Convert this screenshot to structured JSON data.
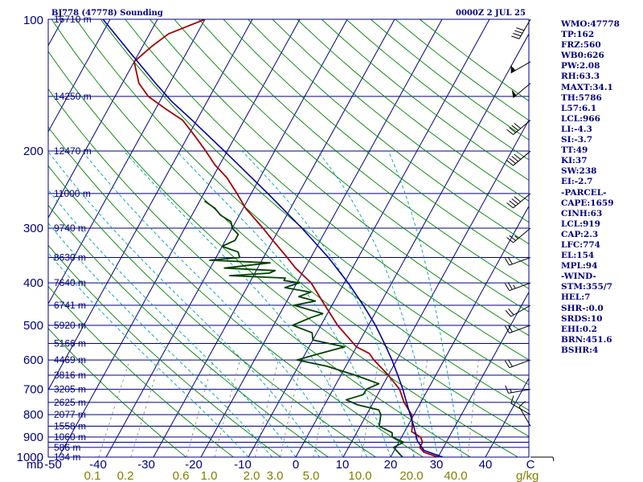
{
  "header": {
    "station": "BJ778 (47778) Sounding",
    "time": "0000Z  2 JUL 25"
  },
  "colors": {
    "isobar": "#000080",
    "isotherm": "#000080",
    "dry_adiabat": "#008000",
    "moist_adiabat": "#00a0a0",
    "mixing_ratio": "#808080",
    "temperature": "#a00000",
    "dewpoint": "#004000",
    "parcel": "#0000a0",
    "index_text": "#000080",
    "mixing_label": "#808000"
  },
  "axis": {
    "pressure_unit": "mb",
    "mixing_unit": "g/kg",
    "pressure_labels": [
      "100",
      "200",
      "300",
      "400",
      "500",
      "600",
      "700",
      "800",
      "900",
      "1000"
    ],
    "temperature_labels": [
      "-50",
      "-40",
      "-30",
      "-20",
      "-10",
      "0",
      "10",
      "20",
      "30",
      "40",
      "C"
    ],
    "mixing_labels": [
      "0.1",
      "0.2",
      "0.6",
      "1.0",
      "2.0",
      "3.0",
      "5.0",
      "10.0",
      "20.0",
      "40.0"
    ],
    "height_labels": [
      "16710 m",
      "14250 m",
      "12470 m",
      "11000 m",
      "9740 m",
      "8630 m",
      "7640 m",
      "6741 m",
      "5920 m",
      "5166 m",
      "4469 m",
      "3816 m",
      "3205 m",
      "2625 m",
      "2077 m",
      "1558 m",
      "1060 m",
      "586 m",
      "134 m"
    ]
  },
  "indices": [
    "WMO:47778",
    "TP:162",
    "FRZ:560",
    "WB0:626",
    "PW:2.08",
    "RH:63.3",
    "MAXT:34.1",
    "TH:5786",
    "L57:6.1",
    "LCL:966",
    "LI:-4.3",
    "SI:-3.7",
    "TT:49",
    "KI:37",
    "SW:238",
    "EI:-2.7",
    "-PARCEL-",
    "CAPE:1659",
    "CINH:63",
    "LCL:919",
    "CAP:2.3",
    "LFC:774",
    "EL:154",
    "MPL:94",
    "-WIND-",
    "STM:355/7",
    "HEL:7",
    "SHR-:0.0",
    "SRDS:10",
    "EHI:0.2",
    "BRN:451.6",
    "BSHR:4"
  ],
  "chart_data": {
    "type": "line",
    "x_unit": "C",
    "y_unit": "mb",
    "y_scale": "log",
    "skew": "skew-T",
    "ylim": [
      1000,
      100
    ],
    "xlim_at_1000mb": [
      -50,
      50
    ],
    "isobars": [
      100,
      150,
      200,
      250,
      300,
      350,
      400,
      450,
      500,
      550,
      600,
      650,
      700,
      750,
      800,
      850,
      900,
      925,
      950,
      1000
    ],
    "isotherms": [
      -140,
      -130,
      -120,
      -110,
      -100,
      -90,
      -80,
      -70,
      -60,
      -50,
      -40,
      -30,
      -20,
      -10,
      0,
      10,
      20,
      30,
      40,
      50
    ],
    "dry_adiabats_theta_K": [
      250,
      260,
      270,
      280,
      290,
      300,
      310,
      320,
      330,
      340,
      350,
      360,
      370,
      380,
      390,
      400,
      410,
      420,
      430,
      440,
      450,
      460,
      470,
      480
    ],
    "moist_adiabats_C": [
      -10,
      -5,
      0,
      5,
      10,
      15,
      20,
      25,
      30,
      35
    ],
    "mixing_ratio_lines": [
      0.1,
      0.2,
      0.6,
      1.0,
      2.0,
      3.0,
      5.0,
      10.0,
      20.0,
      40.0
    ],
    "series": [
      {
        "name": "temperature",
        "p": [
          1000,
          975,
          950,
          925,
          900,
          875,
          850,
          800,
          750,
          700,
          650,
          600,
          580,
          560,
          500,
          450,
          400,
          370,
          350,
          320,
          300,
          270,
          250,
          230,
          215,
          200,
          185,
          170,
          160,
          150,
          140,
          125,
          115,
          108,
          100
        ],
        "t": [
          30.0,
          26.5,
          25.0,
          25.0,
          24.0,
          21.5,
          21.0,
          19.5,
          16.5,
          14.0,
          10.0,
          5.2,
          3.5,
          0.0,
          -6.5,
          -11.5,
          -17.0,
          -22.0,
          -25.0,
          -30.0,
          -33.5,
          -39.5,
          -43.0,
          -47.0,
          -51.0,
          -54.5,
          -58.5,
          -63.0,
          -68.0,
          -73.0,
          -76.5,
          -80.0,
          -78.0,
          -76.0,
          -70.0
        ]
      },
      {
        "name": "dewpoint",
        "p": [
          1000,
          975,
          950,
          925,
          900,
          880,
          850,
          800,
          780,
          760,
          740,
          720,
          700,
          680,
          650,
          620,
          600,
          580,
          560,
          540,
          520,
          500,
          480,
          470,
          450,
          440,
          430,
          420,
          410,
          400,
          395,
          390,
          385,
          380,
          375,
          370,
          360,
          355,
          350,
          340,
          330,
          320,
          310,
          300,
          290,
          280,
          270,
          260
        ],
        "t": [
          22.5,
          21.0,
          19.5,
          21.0,
          18.0,
          17.5,
          14.0,
          13.0,
          12.0,
          7.0,
          4.0,
          7.0,
          7.0,
          9.0,
          3.0,
          -4.0,
          -11.0,
          -7.0,
          -2.5,
          -10.0,
          -11.0,
          -16.0,
          -13.0,
          -11.0,
          -18.0,
          -14.0,
          -18.0,
          -16.0,
          -22.0,
          -19.5,
          -23.0,
          -23.0,
          -35.0,
          -27.0,
          -26.0,
          -37.0,
          -28.0,
          -41.0,
          -35.0,
          -36.0,
          -40.0,
          -38.0,
          -38.0,
          -40.0,
          -41.0,
          -44.0,
          -46.0,
          -49.0
        ]
      },
      {
        "name": "parcel",
        "p": [
          1000,
          966,
          919,
          900,
          850,
          800,
          750,
          700,
          650,
          600,
          550,
          500,
          450,
          400,
          350,
          300,
          250,
          200,
          170,
          154,
          140,
          120,
          100
        ],
        "t": [
          31.0,
          26.3,
          23.8,
          23.1,
          21.3,
          19.2,
          17.0,
          14.7,
          12.0,
          9.0,
          5.5,
          1.5,
          -3.4,
          -9.2,
          -16.3,
          -25.3,
          -36.5,
          -50.6,
          -61.0,
          -67.5,
          -73.0,
          -81.5,
          -91.5
        ]
      }
    ],
    "wind_barbs": [
      {
        "p": 1000,
        "dir": 90,
        "spd": 5
      },
      {
        "p": 850,
        "dir": 330,
        "spd": 10
      },
      {
        "p": 800,
        "dir": 300,
        "spd": 10
      },
      {
        "p": 700,
        "dir": 260,
        "spd": 15
      },
      {
        "p": 600,
        "dir": 250,
        "spd": 20
      },
      {
        "p": 500,
        "dir": 250,
        "spd": 20
      },
      {
        "p": 450,
        "dir": 240,
        "spd": 20
      },
      {
        "p": 400,
        "dir": 250,
        "spd": 25
      },
      {
        "p": 350,
        "dir": 250,
        "spd": 20
      },
      {
        "p": 300,
        "dir": 230,
        "spd": 25
      },
      {
        "p": 250,
        "dir": 230,
        "spd": 40
      },
      {
        "p": 200,
        "dir": 230,
        "spd": 40
      },
      {
        "p": 170,
        "dir": 230,
        "spd": 40
      },
      {
        "p": 140,
        "dir": 230,
        "spd": 50
      },
      {
        "p": 125,
        "dir": 240,
        "spd": 55
      },
      {
        "p": 100,
        "dir": 210,
        "spd": 40
      }
    ]
  }
}
